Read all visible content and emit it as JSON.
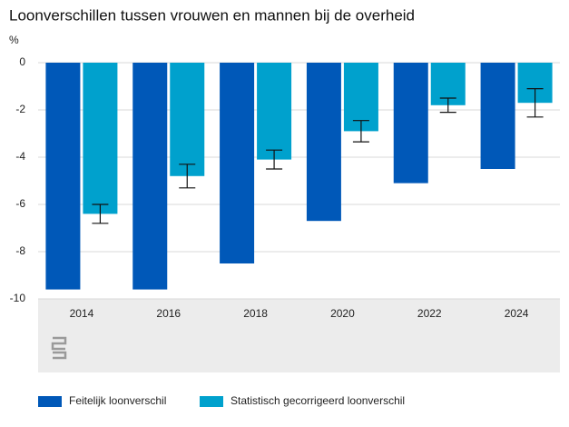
{
  "chart_data": {
    "type": "bar",
    "title": "Loonverschillen tussen vrouwen en mannen bij de overheid",
    "y_label": "%",
    "categories": [
      "2014",
      "2016",
      "2018",
      "2020",
      "2022",
      "2024"
    ],
    "series": [
      {
        "name": "Feitelijk loonverschil",
        "color": "#0058b8",
        "values": [
          -9.6,
          -9.6,
          -8.5,
          -6.7,
          -5.1,
          -4.5
        ]
      },
      {
        "name": "Statistisch gecorrigeerd loonverschil",
        "color": "#00a1cd",
        "values": [
          -6.4,
          -4.8,
          -4.1,
          -2.9,
          -1.8,
          -1.7
        ],
        "errors": [
          0.4,
          0.5,
          0.4,
          0.45,
          0.3,
          0.6
        ]
      }
    ],
    "ylim": [
      -10,
      0
    ],
    "yticks": [
      0,
      -2,
      -4,
      -6,
      -8,
      -10
    ],
    "grid": true,
    "legend": "bottom"
  }
}
